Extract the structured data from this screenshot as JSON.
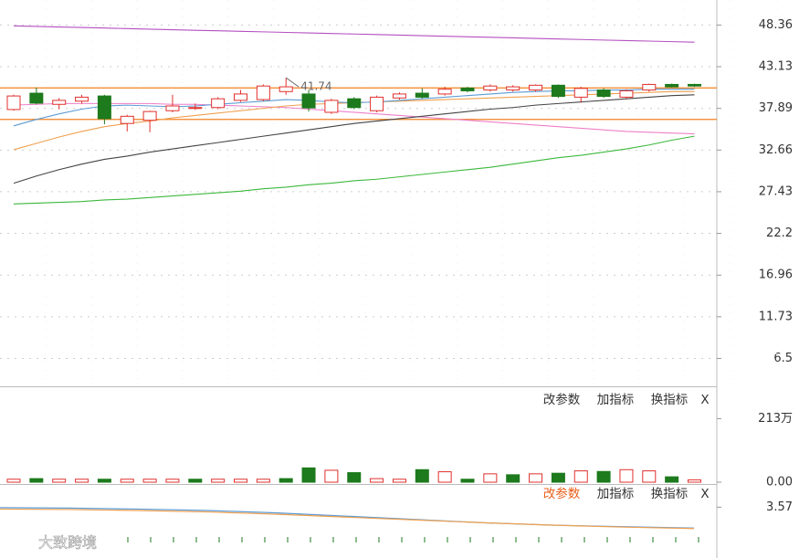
{
  "chart_data": [
    {
      "type": "candlestick",
      "up_color": "#e0302d",
      "down_color": "#1d7a1d",
      "open": [
        37.75,
        39.8,
        38.4,
        38.8,
        39.45,
        36.0,
        36.4,
        37.6,
        37.9,
        38.0,
        38.9,
        39.0,
        40.0,
        39.7,
        37.4,
        39.1,
        37.6,
        39.2,
        39.8,
        39.7,
        40.45,
        40.2,
        40.2,
        40.2,
        40.8,
        39.3,
        40.2,
        39.3,
        40.2,
        40.9,
        40.9
      ],
      "high": [
        39.6,
        40.5,
        39.2,
        39.6,
        39.6,
        37.1,
        37.6,
        39.6,
        38.5,
        39.3,
        40.2,
        40.9,
        41.74,
        40.2,
        39.1,
        39.3,
        39.5,
        39.9,
        40.4,
        40.6,
        40.6,
        40.9,
        40.8,
        40.9,
        40.9,
        40.6,
        40.4,
        40.3,
        41.0,
        41.0,
        41.0
      ],
      "low": [
        37.6,
        38.4,
        37.8,
        38.5,
        35.9,
        35.0,
        34.9,
        37.4,
        37.7,
        37.8,
        38.7,
        38.8,
        39.6,
        37.5,
        37.2,
        37.8,
        37.4,
        39.0,
        39.1,
        39.5,
        39.9,
        40.0,
        40.0,
        40.0,
        39.2,
        38.6,
        39.2,
        39.1,
        40.0,
        40.5,
        40.6
      ],
      "close": [
        39.45,
        38.55,
        38.9,
        39.3,
        36.6,
        36.9,
        37.5,
        38.2,
        38.0,
        39.1,
        39.7,
        40.7,
        40.6,
        37.95,
        38.9,
        38.0,
        39.3,
        39.7,
        39.3,
        40.3,
        40.1,
        40.7,
        40.6,
        40.8,
        39.4,
        40.4,
        39.4,
        40.1,
        40.9,
        40.6,
        40.7
      ],
      "series": [
        {
          "color": "#b44fc0",
          "values": [
            48.25,
            48.18,
            48.11,
            48.05,
            47.98,
            47.91,
            47.84,
            47.77,
            47.7,
            47.64,
            47.57,
            47.5,
            47.43,
            47.36,
            47.29,
            47.23,
            47.16,
            47.09,
            47.02,
            46.95,
            46.88,
            46.82,
            46.75,
            46.68,
            46.61,
            46.54,
            46.47,
            46.41,
            46.34,
            46.27,
            46.2
          ]
        },
        {
          "color": "#ee7fc8",
          "values": [
            38.3,
            38.4,
            38.5,
            38.5,
            38.5,
            38.5,
            38.5,
            38.4,
            38.4,
            38.3,
            38.2,
            38.1,
            38.0,
            37.8,
            37.6,
            37.4,
            37.2,
            37.0,
            36.8,
            36.6,
            36.4,
            36.2,
            36.0,
            35.8,
            35.6,
            35.4,
            35.2,
            35.0,
            34.9,
            34.8,
            34.7
          ]
        },
        {
          "color": "#444444",
          "values": [
            28.5,
            29.4,
            30.2,
            30.9,
            31.5,
            31.9,
            32.4,
            32.8,
            33.2,
            33.6,
            34.0,
            34.4,
            34.8,
            35.2,
            35.6,
            36.0,
            36.3,
            36.6,
            36.9,
            37.2,
            37.5,
            37.8,
            38.0,
            38.3,
            38.5,
            38.7,
            38.9,
            39.1,
            39.3,
            39.5,
            39.6
          ]
        },
        {
          "color": "#3cb83c",
          "values": [
            25.9,
            26.0,
            26.1,
            26.2,
            26.4,
            26.5,
            26.7,
            26.9,
            27.1,
            27.3,
            27.5,
            27.8,
            28.0,
            28.3,
            28.5,
            28.8,
            29.0,
            29.3,
            29.6,
            29.9,
            30.2,
            30.5,
            30.9,
            31.3,
            31.7,
            32.0,
            32.4,
            32.8,
            33.3,
            33.9,
            34.4
          ]
        },
        {
          "color": "#f0a050",
          "values": [
            32.7,
            33.5,
            34.3,
            35.0,
            35.6,
            36.0,
            36.3,
            36.7,
            37.0,
            37.3,
            37.6,
            37.9,
            38.2,
            38.4,
            38.5,
            38.6,
            38.7,
            38.8,
            38.9,
            39.0,
            39.1,
            39.2,
            39.3,
            39.4,
            39.5,
            39.6,
            39.7,
            39.8,
            39.9,
            40.0,
            40.0
          ]
        },
        {
          "color": "#5b9bd5",
          "values": [
            35.7,
            36.5,
            37.2,
            37.8,
            38.2,
            38.3,
            38.2,
            38.1,
            38.2,
            38.4,
            38.6,
            38.8,
            39.0,
            38.9,
            38.7,
            38.6,
            38.7,
            38.9,
            39.1,
            39.3,
            39.5,
            39.7,
            39.9,
            40.0,
            40.1,
            40.1,
            40.2,
            40.2,
            40.3,
            40.3,
            40.3
          ]
        }
      ],
      "hlines": [
        40.46,
        36.51
      ],
      "hline_color": "#f08020",
      "ylim": [
        3.0,
        51.5
      ],
      "yticks": [
        48.36,
        43.13,
        37.89,
        32.66,
        27.43,
        22.2,
        16.96,
        11.73,
        6.5
      ],
      "grid": true
    },
    {
      "type": "bar",
      "buttons": [
        "改参数",
        "加指标",
        "换指标",
        "X"
      ],
      "values": [
        10,
        12,
        10,
        10,
        10,
        10,
        10,
        10,
        10,
        10,
        10,
        10,
        12,
        48,
        40,
        32,
        12,
        10,
        42,
        35,
        10,
        28,
        25,
        28,
        30,
        38,
        36,
        42,
        38,
        18,
        8
      ],
      "colors": [
        "#e0302d",
        "#1d7a1d",
        "#e0302d",
        "#e0302d",
        "#1d7a1d",
        "#e0302d",
        "#e0302d",
        "#e0302d",
        "#1d7a1d",
        "#e0302d",
        "#e0302d",
        "#e0302d",
        "#1d7a1d",
        "#1d7a1d",
        "#e0302d",
        "#1d7a1d",
        "#e0302d",
        "#e0302d",
        "#1d7a1d",
        "#e0302d",
        "#1d7a1d",
        "#e0302d",
        "#1d7a1d",
        "#e0302d",
        "#1d7a1d",
        "#e0302d",
        "#1d7a1d",
        "#e0302d",
        "#e0302d",
        "#1d7a1d",
        "#e0302d"
      ],
      "ylim": [
        0,
        300
      ],
      "yticks": [
        {
          "value": 0,
          "label": "0.00"
        },
        {
          "value": 213,
          "label": "213万"
        }
      ]
    },
    {
      "type": "line",
      "buttons": [
        "改参数",
        "加指标",
        "换指标",
        "X"
      ],
      "watermark": "大致跨境",
      "series": [
        {
          "color": "#5b9bd5",
          "values": [
            3.56,
            3.55,
            3.53,
            3.5,
            3.45,
            3.38,
            3.31,
            3.24,
            3.19,
            3.16,
            3.13
          ]
        },
        {
          "color": "#f0a050",
          "values": [
            3.53,
            3.52,
            3.5,
            3.47,
            3.42,
            3.36,
            3.3,
            3.24,
            3.19,
            3.15,
            3.12
          ]
        }
      ],
      "ylim": [
        2.5,
        4.0
      ],
      "yticks": [
        3.57
      ]
    }
  ]
}
